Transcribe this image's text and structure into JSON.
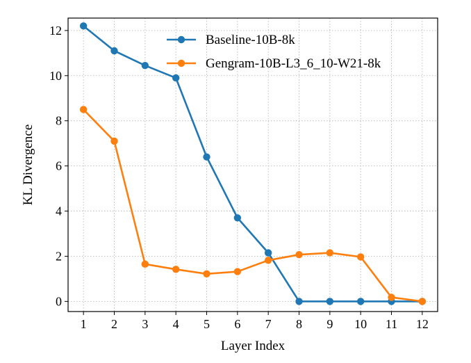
{
  "chart_data": {
    "type": "line",
    "title": "",
    "xlabel": "Layer Index",
    "ylabel": "KL Divergence",
    "x": [
      1,
      2,
      3,
      4,
      5,
      6,
      7,
      8,
      9,
      10,
      11,
      12
    ],
    "x_ticks": [
      "1",
      "2",
      "3",
      "4",
      "5",
      "6",
      "7",
      "8",
      "9",
      "10",
      "11",
      "12"
    ],
    "xlim": [
      0.5,
      12.5
    ],
    "ylim": [
      -0.45,
      12.55
    ],
    "y_ticks": [
      0,
      2,
      4,
      6,
      8,
      10,
      12
    ],
    "y_tick_labels": [
      "0",
      "2",
      "4",
      "6",
      "8",
      "10",
      "12"
    ],
    "grid": true,
    "legend_position": "top-right",
    "series": [
      {
        "name": "Baseline-10B-8k",
        "color": "#1f77b4",
        "values": [
          12.2,
          11.1,
          10.45,
          9.9,
          6.4,
          3.7,
          2.15,
          0.0,
          0.0,
          0.0,
          0.0,
          0.0
        ]
      },
      {
        "name": "Gengram-10B-L3_6_10-W21-8k",
        "color": "#ff7f0e",
        "values": [
          8.5,
          7.1,
          1.65,
          1.42,
          1.22,
          1.32,
          1.82,
          2.07,
          2.15,
          1.97,
          0.18,
          0.0
        ]
      }
    ]
  }
}
